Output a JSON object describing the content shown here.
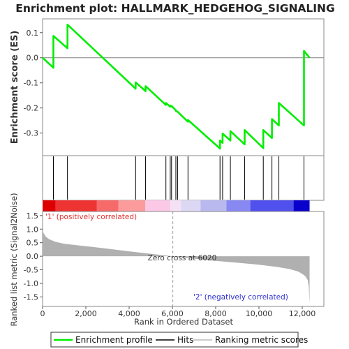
{
  "chart_data": {
    "type": "line",
    "title": "Enrichment plot: HALLMARK_HEDGEHOG_SIGNALING",
    "top_panel": {
      "ylabel": "Enrichment score (ES)",
      "ylim": [
        -0.39,
        0.155
      ],
      "yticks": [
        0.1,
        0.0,
        -0.1,
        -0.2,
        -0.3
      ],
      "ytick_labels": [
        "0.1",
        "0.0",
        "-0.1",
        "-0.2",
        "-0.3"
      ],
      "series": [
        {
          "name": "Enrichment profile",
          "color": "#00ee00",
          "x": [
            0,
            500,
            500,
            1150,
            1150,
            4300,
            4300,
            4760,
            4760,
            5700,
            5700,
            5900,
            5900,
            5960,
            5960,
            6160,
            6160,
            6240,
            6240,
            6720,
            6720,
            8200,
            8200,
            8320,
            8320,
            8680,
            8680,
            9340,
            9340,
            10200,
            10200,
            10600,
            10600,
            10920,
            10920,
            12080,
            12080,
            12340
          ],
          "y": [
            0.0,
            -0.04,
            0.087,
            0.038,
            0.132,
            -0.123,
            -0.098,
            -0.133,
            -0.113,
            -0.188,
            -0.18,
            -0.195,
            -0.19,
            -0.195,
            -0.192,
            -0.209,
            -0.212,
            -0.215,
            -0.215,
            -0.255,
            -0.248,
            -0.362,
            -0.33,
            -0.339,
            -0.302,
            -0.33,
            -0.292,
            -0.345,
            -0.288,
            -0.36,
            -0.288,
            -0.32,
            -0.244,
            -0.27,
            -0.18,
            -0.27,
            0.027,
            0.0
          ]
        }
      ],
      "hits": [
        500,
        1150,
        4300,
        4760,
        5700,
        5900,
        5960,
        6160,
        6240,
        6720,
        8200,
        8320,
        8680,
        9340,
        10200,
        10600,
        10920,
        12080
      ]
    },
    "bottom_panel": {
      "ylabel": "Ranked list metric (Signal2Noise)",
      "xlabel": "Rank in Ordered Dataset",
      "ylim": [
        -1.85,
        1.65
      ],
      "yticks": [
        1.5,
        1.0,
        0.5,
        0.0,
        -0.5,
        -1.0,
        -1.5
      ],
      "ytick_labels": [
        "1.5",
        "1.0",
        "0.5",
        "0.0",
        "-0.5",
        "-1.0",
        "-1.5"
      ],
      "xlim": [
        0,
        13000
      ],
      "xticks": [
        0,
        2000,
        4000,
        6000,
        8000,
        10000,
        12000
      ],
      "xtick_labels": [
        "0",
        "2,000",
        "4,000",
        "6,000",
        "8,000",
        "10,000",
        "12,000"
      ],
      "profile_x": [
        0,
        50,
        150,
        300,
        600,
        1000,
        2000,
        3000,
        4000,
        5000,
        6020,
        7000,
        8000,
        9000,
        10000,
        10800,
        11400,
        11800,
        12000,
        12150,
        12250,
        12300,
        12340
      ],
      "profile_y": [
        1.0,
        0.85,
        0.72,
        0.63,
        0.53,
        0.46,
        0.37,
        0.28,
        0.18,
        0.09,
        0.0,
        -0.09,
        -0.17,
        -0.24,
        -0.31,
        -0.39,
        -0.47,
        -0.56,
        -0.65,
        -0.74,
        -0.88,
        -1.12,
        -1.75
      ],
      "fill_color": "#b0b0b0",
      "zero_cross": 6020,
      "zero_cross_label": "Zero cross at 6020",
      "pos_label": "'1' (positively correlated)",
      "neg_label": "'2' (negatively correlated)"
    },
    "total_rank": 12340,
    "color_bar": [
      {
        "from": 0,
        "to": 600,
        "color": "#dd0000"
      },
      {
        "from": 600,
        "to": 2500,
        "color": "#ee3333"
      },
      {
        "from": 2500,
        "to": 3500,
        "color": "#f76a6a"
      },
      {
        "from": 3500,
        "to": 4750,
        "color": "#fb9b9b"
      },
      {
        "from": 4750,
        "to": 5900,
        "color": "#fbc8e6"
      },
      {
        "from": 5900,
        "to": 6400,
        "color": "#f4e2f4"
      },
      {
        "from": 6400,
        "to": 7300,
        "color": "#dcd8f4"
      },
      {
        "from": 7300,
        "to": 8500,
        "color": "#b9b9f0"
      },
      {
        "from": 8500,
        "to": 9600,
        "color": "#8888f2"
      },
      {
        "from": 9600,
        "to": 11600,
        "color": "#5050ec"
      },
      {
        "from": 11600,
        "to": 12340,
        "color": "#0a00cc"
      }
    ],
    "legend": [
      {
        "label": "Enrichment profile",
        "color": "#00ee00"
      },
      {
        "label": "Hits",
        "color": "#000000"
      },
      {
        "label": "Ranking metric scores",
        "color": "#bbbbbb"
      }
    ]
  }
}
